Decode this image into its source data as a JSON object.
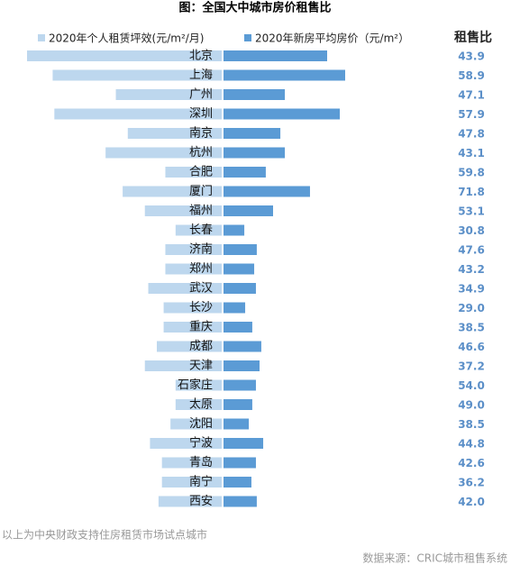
{
  "chart_data": {
    "type": "butterfly-bar",
    "title": "图：全国大中城市房价租售比",
    "categories": [
      "北京",
      "上海",
      "广州",
      "深圳",
      "南京",
      "杭州",
      "合肥",
      "厦门",
      "福州",
      "长春",
      "济南",
      "郑州",
      "武汉",
      "长沙",
      "重庆",
      "成都",
      "天津",
      "石家庄",
      "太原",
      "沈阳",
      "宁波",
      "青岛",
      "南宁",
      "西安"
    ],
    "series": [
      {
        "name": "2020年个人租赁坪效(元/m²/月)",
        "color": "#bdd7ee",
        "side": "left",
        "values": [
          114,
          99,
          62,
          98,
          55,
          68,
          33,
          58,
          45,
          27,
          33,
          33,
          43,
          34,
          34,
          38,
          45,
          27,
          27,
          30,
          42,
          35,
          35,
          37
        ]
      },
      {
        "name": "2020年新房平均房价（元/m²）",
        "color": "#5b9bd5",
        "side": "right",
        "values": [
          59800,
          70200,
          35400,
          67100,
          32800,
          35400,
          24400,
          49900,
          28600,
          12000,
          19200,
          17700,
          18700,
          12500,
          16600,
          21800,
          20800,
          18700,
          16600,
          14600,
          22900,
          18700,
          16100,
          19200
        ]
      }
    ],
    "ratio": {
      "name": "租售比",
      "values": [
        43.9,
        58.9,
        47.1,
        57.9,
        47.8,
        43.1,
        59.8,
        71.8,
        53.1,
        30.8,
        47.6,
        43.2,
        34.9,
        29.0,
        38.5,
        46.6,
        37.2,
        54.0,
        49.0,
        38.5,
        44.8,
        42.6,
        36.2,
        42.0
      ],
      "value_labels": [
        "43.9",
        "58.9",
        "47.1",
        "57.9",
        "47.8",
        "43.1",
        "59.8",
        "71.8",
        "53.1",
        "30.8",
        "47.6",
        "43.2",
        "34.9",
        "29.0",
        "38.5",
        "46.6",
        "37.2",
        "54.0",
        "49.0",
        "38.5",
        "44.8",
        "42.6",
        "36.2",
        "42.0"
      ]
    },
    "note": "以上为中央财政支持住房租赁市场试点城市",
    "source": "数据来源：CRIC城市租售系统"
  }
}
